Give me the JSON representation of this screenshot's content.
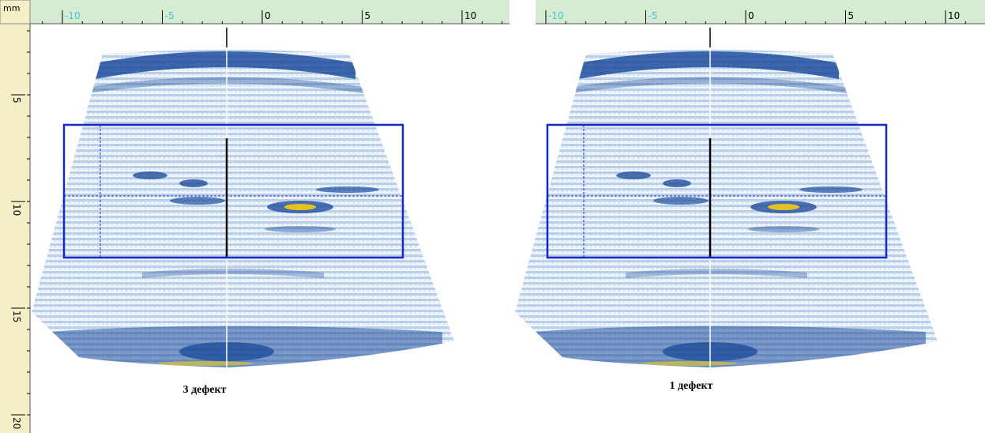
{
  "unit": "mm",
  "panels": [
    {
      "ruler_ticks": [
        -10,
        -5,
        0,
        5,
        10
      ],
      "caption": "3 дефект"
    },
    {
      "ruler_ticks": [
        -10,
        -5,
        0,
        5,
        10
      ],
      "caption": "1 дефект"
    }
  ],
  "depth_ticks": [
    5,
    10,
    15,
    20
  ]
}
